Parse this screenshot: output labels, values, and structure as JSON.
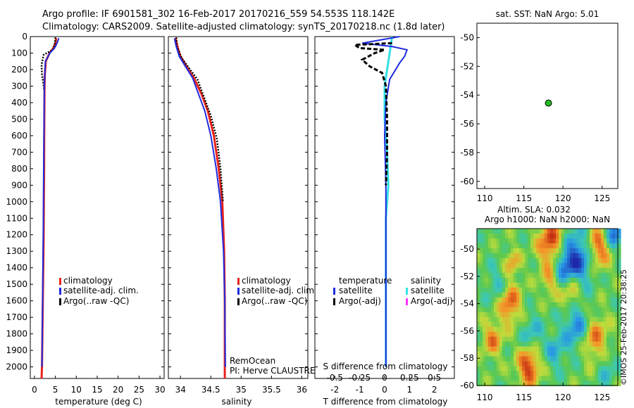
{
  "header": {
    "line1": "Argo profile: IF 6901581_302 16-Feb-2017 20170216_559 54.553S 118.142E",
    "line2": "Climatology: CARS2009. Satellite-adjusted climatology: synTS_20170218.nc (1.8d later)"
  },
  "colors": {
    "climatology": "#e8231a",
    "satellite_adj": "#1f2be0",
    "argo": "#000000",
    "sat_salinity": "#33e0e6",
    "argo_salinity": "#ff33ff",
    "argo_point": "#22bb22"
  },
  "chart_data": [
    {
      "type": "line",
      "id": "temperature",
      "xlabel": "temperature (deg C)",
      "xlim": [
        -1,
        31
      ],
      "ylim": [
        2070,
        0
      ],
      "xticks": [
        0,
        5,
        10,
        15,
        20,
        25,
        30
      ],
      "yticks": [
        0,
        100,
        200,
        300,
        400,
        500,
        600,
        700,
        800,
        900,
        1000,
        1100,
        1200,
        1300,
        1400,
        1500,
        1600,
        1700,
        1800,
        1900,
        2000
      ],
      "legend": [
        "climatology",
        "satellite-adj. clim.",
        "Argo(..raw -QC)"
      ],
      "series": [
        {
          "name": "climatology",
          "points": [
            [
              5.2,
              10
            ],
            [
              5.0,
              40
            ],
            [
              4.5,
              70
            ],
            [
              3.6,
              100
            ],
            [
              2.7,
              150
            ],
            [
              2.5,
              220
            ],
            [
              2.4,
              300
            ],
            [
              2.35,
              500
            ],
            [
              2.3,
              800
            ],
            [
              2.2,
              1200
            ],
            [
              2.0,
              1600
            ],
            [
              1.8,
              2000
            ],
            [
              1.7,
              2070
            ]
          ]
        },
        {
          "name": "satellite-adj. clim.",
          "points": [
            [
              5.8,
              10
            ],
            [
              5.4,
              40
            ],
            [
              4.8,
              70
            ],
            [
              3.7,
              100
            ],
            [
              2.6,
              150
            ],
            [
              2.5,
              220
            ],
            [
              2.35,
              300
            ],
            [
              2.3,
              500
            ],
            [
              2.2,
              800
            ],
            [
              2.1,
              1200
            ],
            [
              1.95,
              1600
            ],
            [
              1.8,
              2000
            ]
          ]
        },
        {
          "name": "Argo(..raw -QC)",
          "points": [
            [
              5.0,
              5
            ],
            [
              4.9,
              40
            ],
            [
              4.4,
              80
            ],
            [
              2.2,
              110
            ],
            [
              1.7,
              170
            ],
            [
              1.8,
              230
            ],
            [
              2.1,
              280
            ],
            [
              2.3,
              320
            ]
          ]
        }
      ]
    },
    {
      "type": "line",
      "id": "salinity",
      "xlabel": "salinity",
      "xlim": [
        33.8,
        36.1
      ],
      "ylim": [
        2070,
        0
      ],
      "xticks": [
        34,
        34.5,
        35,
        35.5,
        36
      ],
      "legend": [
        "climatology",
        "satellite-adj. clim.",
        "Argo(..raw -QC)"
      ],
      "annotations": [
        "RemOcean",
        "PI: Herve CLAUSTRE"
      ],
      "series": [
        {
          "name": "climatology",
          "points": [
            [
              33.92,
              10
            ],
            [
              33.95,
              60
            ],
            [
              34.0,
              120
            ],
            [
              34.1,
              180
            ],
            [
              34.22,
              250
            ],
            [
              34.35,
              350
            ],
            [
              34.45,
              450
            ],
            [
              34.55,
              600
            ],
            [
              34.63,
              800
            ],
            [
              34.69,
              1000
            ],
            [
              34.72,
              1300
            ],
            [
              34.73,
              1600
            ],
            [
              34.73,
              2000
            ],
            [
              34.73,
              2070
            ]
          ]
        },
        {
          "name": "satellite-adj. clim.",
          "points": [
            [
              33.9,
              10
            ],
            [
              33.93,
              60
            ],
            [
              33.98,
              120
            ],
            [
              34.08,
              180
            ],
            [
              34.2,
              250
            ],
            [
              34.3,
              350
            ],
            [
              34.4,
              450
            ],
            [
              34.5,
              600
            ],
            [
              34.59,
              800
            ],
            [
              34.66,
              1000
            ],
            [
              34.71,
              1300
            ],
            [
              34.73,
              1600
            ],
            [
              34.74,
              2000
            ]
          ]
        },
        {
          "name": "Argo(..raw -QC)",
          "points": [
            [
              33.93,
              5
            ],
            [
              33.94,
              60
            ],
            [
              34.02,
              130
            ],
            [
              34.12,
              180
            ],
            [
              34.28,
              260
            ],
            [
              34.4,
              380
            ],
            [
              34.5,
              480
            ],
            [
              34.6,
              620
            ],
            [
              34.66,
              800
            ],
            [
              34.7,
              1000
            ]
          ]
        }
      ]
    },
    {
      "type": "line",
      "id": "difference",
      "xlabel": "T difference from climatology",
      "xlabel_top": "S difference from climatology",
      "xlim": [
        -2.8,
        2.8
      ],
      "ylim": [
        2070,
        0
      ],
      "xticks_bottom": [
        -2,
        -1,
        0,
        1,
        2
      ],
      "xticks_top_labels": [
        "-0.5",
        "-0.25",
        "0",
        "0.25",
        "0.5"
      ],
      "legend_groups": [
        {
          "title": "temperature",
          "items": [
            "satellite",
            "Argo(-adj)"
          ]
        },
        {
          "title": "salinity",
          "items": [
            "satellite",
            "Argo(-adj)"
          ]
        }
      ],
      "series": [
        {
          "name": "temperature satellite",
          "points": [
            [
              0.6,
              0
            ],
            [
              -0.9,
              40
            ],
            [
              0.3,
              60
            ],
            [
              0.9,
              80
            ],
            [
              0.8,
              120
            ],
            [
              0.6,
              160
            ],
            [
              0.2,
              260
            ],
            [
              0.05,
              400
            ],
            [
              0.0,
              600
            ],
            [
              0.05,
              900
            ],
            [
              0.05,
              1200
            ],
            [
              0.05,
              1600
            ],
            [
              0.05,
              2000
            ]
          ]
        },
        {
          "name": "salinity satellite",
          "points": [
            [
              0.3,
              0
            ],
            [
              0.2,
              100
            ],
            [
              0.1,
              200
            ],
            [
              0.0,
              300
            ],
            [
              0.0,
              500
            ],
            [
              0.1,
              700
            ],
            [
              0.15,
              900
            ],
            [
              0.05,
              1100
            ],
            [
              0.05,
              1500
            ],
            [
              0.05,
              2000
            ]
          ]
        },
        {
          "name": "temperature Argo(-adj)",
          "points": [
            [
              0.3,
              40
            ],
            [
              -1.2,
              50
            ],
            [
              -1.0,
              70
            ],
            [
              0.0,
              80
            ],
            [
              -0.4,
              100
            ],
            [
              -0.9,
              140
            ],
            [
              -0.6,
              180
            ],
            [
              -0.1,
              220
            ],
            [
              0.05,
              300
            ],
            [
              0.1,
              500
            ],
            [
              0.1,
              700
            ],
            [
              0.05,
              900
            ]
          ]
        }
      ]
    },
    {
      "type": "scatter",
      "id": "position",
      "title": "sat. SST: NaN Argo: 5.01",
      "xlim": [
        109,
        127
      ],
      "ylim": [
        -60.5,
        -49
      ],
      "xticks": [
        110,
        115,
        120,
        125
      ],
      "yticks": [
        -50,
        -52,
        -54,
        -56,
        -58,
        -60
      ],
      "points": [
        [
          118.142,
          -54.553
        ]
      ]
    },
    {
      "type": "heatmap",
      "id": "sla",
      "title_line1": "Altim. SLA: 0.032",
      "title_line2": "Argo h1000: NaN h2000: NaN",
      "xlim": [
        109,
        127
      ],
      "ylim": [
        -60,
        -48.5
      ],
      "xticks": [
        110,
        115,
        120,
        125
      ],
      "yticks": [
        -50,
        -52,
        -54,
        -56,
        -58,
        -60
      ],
      "credit": "©IMOS 25-Feb-2017 20:38:25"
    }
  ]
}
